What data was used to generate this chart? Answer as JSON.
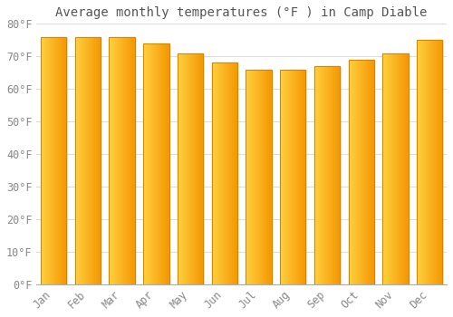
{
  "title": "Average monthly temperatures (°F ) in Camp Diable",
  "months": [
    "Jan",
    "Feb",
    "Mar",
    "Apr",
    "May",
    "Jun",
    "Jul",
    "Aug",
    "Sep",
    "Oct",
    "Nov",
    "Dec"
  ],
  "values": [
    76,
    76,
    76,
    74,
    71,
    68,
    66,
    66,
    67,
    69,
    71,
    75
  ],
  "bar_color_left": "#FFCC44",
  "bar_color_right": "#F59B00",
  "bar_edge_color": "#CC8800",
  "background_color": "#FFFFFF",
  "grid_color": "#DDDDDD",
  "ylim": [
    0,
    80
  ],
  "yticks": [
    0,
    10,
    20,
    30,
    40,
    50,
    60,
    70,
    80
  ],
  "ytick_labels": [
    "0°F",
    "10°F",
    "20°F",
    "30°F",
    "40°F",
    "50°F",
    "60°F",
    "70°F",
    "80°F"
  ],
  "title_fontsize": 10,
  "tick_fontsize": 8.5,
  "font_color": "#888888"
}
